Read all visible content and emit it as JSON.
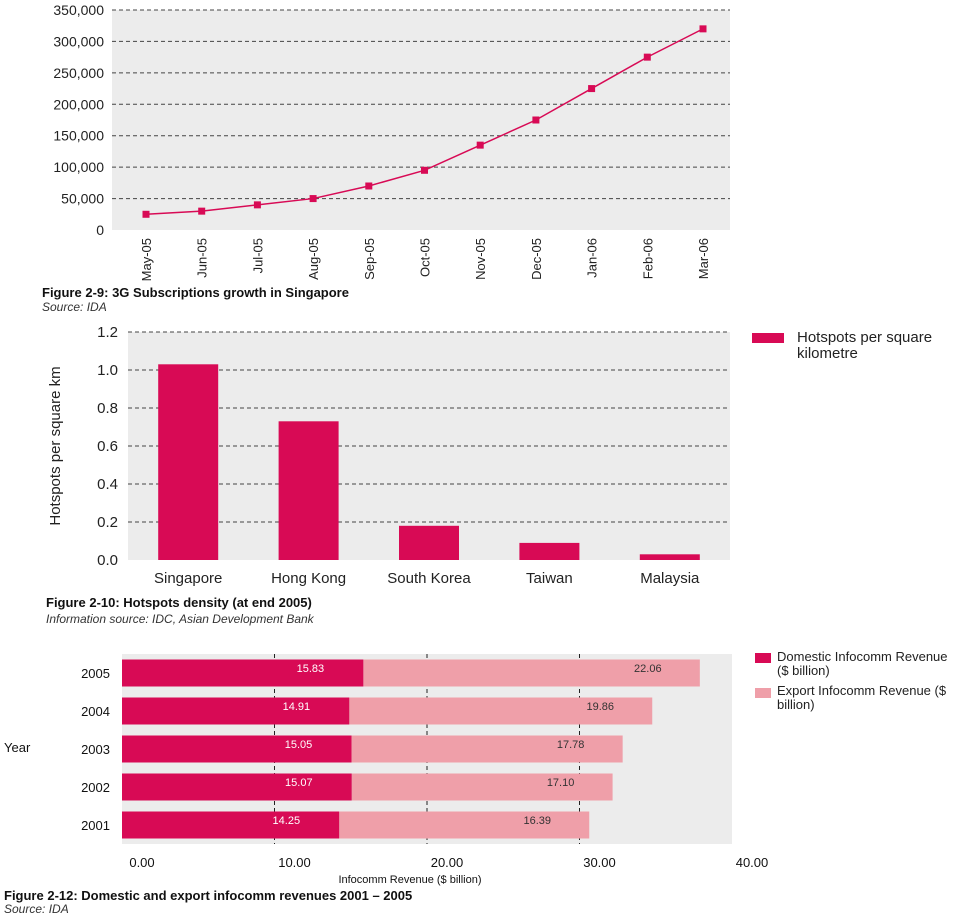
{
  "colors": {
    "primary": "#d80a55",
    "export": "#ef9fa9",
    "panel": "#ececec",
    "grid": "#444444"
  },
  "chart_data": [
    {
      "type": "line",
      "caption": "Figure 2-9: 3G Subscriptions growth in Singapore",
      "source": "Source: IDA",
      "categories": [
        "May-05",
        "Jun-05",
        "Jul-05",
        "Aug-05",
        "Sep-05",
        "Oct-05",
        "Nov-05",
        "Dec-05",
        "Jan-06",
        "Feb-06",
        "Mar-06"
      ],
      "values": [
        25000,
        30000,
        40000,
        50000,
        70000,
        95000,
        135000,
        175000,
        225000,
        275000,
        320000
      ],
      "ylim": [
        0,
        350000
      ],
      "yticks": [
        "0",
        "50,000",
        "100,000",
        "150,000",
        "200,000",
        "250,000",
        "300,000",
        "350,000"
      ],
      "grid": true
    },
    {
      "type": "bar",
      "caption": "Figure 2-10: Hotspots density (at end 2005)",
      "source": "Information source: IDC, Asian Development Bank",
      "ylabel": "Hotspots per square km",
      "categories": [
        "Singapore",
        "Hong Kong",
        "South Korea",
        "Taiwan",
        "Malaysia"
      ],
      "series": [
        {
          "name": "Hotspots per square kilometre",
          "values": [
            1.03,
            0.73,
            0.18,
            0.09,
            0.03
          ]
        }
      ],
      "ylim": [
        0,
        1.2
      ],
      "yticks": [
        "0.0",
        "0.2",
        "0.4",
        "0.6",
        "0.8",
        "1.0",
        "1.2"
      ],
      "legend": "top-right",
      "grid": true
    },
    {
      "type": "bar",
      "orientation": "horizontal",
      "stacked": true,
      "caption": "Figure 2-12: Domestic and export infocomm revenues 2001 – 2005",
      "source": "Source: IDA",
      "ylabel": "Year",
      "xlabel": "Infocomm Revenue ($ billion)",
      "categories": [
        "2005",
        "2004",
        "2003",
        "2002",
        "2001"
      ],
      "series": [
        {
          "name": "Domestic Infocomm Revenue ($ billion)",
          "values": [
            15.83,
            14.91,
            15.05,
            15.07,
            14.25
          ],
          "labels": [
            "15.83",
            "14.91",
            "15.05",
            "15.07",
            "14.25"
          ]
        },
        {
          "name": "Export Infocomm Revenue ($ billion)",
          "values": [
            22.06,
            19.86,
            17.78,
            17.1,
            16.39
          ],
          "labels": [
            "22.06",
            "19.86",
            "17.78",
            "17.10",
            "16.39"
          ]
        }
      ],
      "xlim": [
        0,
        40
      ],
      "xticks": [
        "0.00",
        "10.00",
        "20.00",
        "30.00",
        "40.00"
      ],
      "legend": "top-right"
    }
  ]
}
